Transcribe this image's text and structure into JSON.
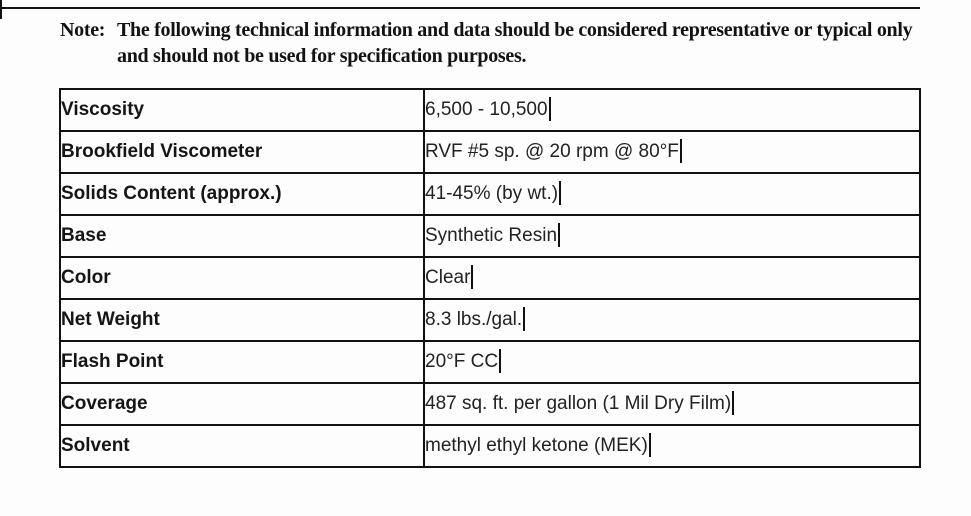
{
  "note": {
    "label": "Note:",
    "text": "The following technical information and data should be considered representative or typical only and should not be used for specification purposes."
  },
  "table": {
    "rows": [
      {
        "property": "Viscosity",
        "value": "6,500 - 10,500"
      },
      {
        "property": "Brookfield Viscometer",
        "value": "RVF #5 sp. @ 20 rpm @ 80°F"
      },
      {
        "property": "Solids Content (approx.)",
        "value": "41-45% (by wt.)"
      },
      {
        "property": "Base",
        "value": "Synthetic Resin"
      },
      {
        "property": "Color",
        "value": "Clear"
      },
      {
        "property": "Net Weight",
        "value": "8.3 lbs./gal."
      },
      {
        "property": "Flash Point",
        "value": "20°F CC"
      },
      {
        "property": "Coverage",
        "value": "487 sq. ft. per gallon (1 Mil Dry Film)"
      },
      {
        "property": "Solvent",
        "value": "methyl ethyl ketone (MEK)",
        "has_caret": true
      }
    ]
  },
  "colors": {
    "background": "#fdfdfd",
    "text": "#1a1a1a",
    "border": "#111111"
  }
}
